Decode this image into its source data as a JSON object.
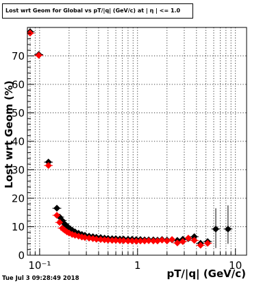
{
  "title": "Lost wrt Geom for Global vs pT/|q| (GeV/c) at | η | <= 1.0",
  "datestamp": "Tue Jul  3 09:28:49 2018",
  "chart_data": {
    "type": "scatter",
    "xlabel": "pT/|q| (GeV/c)",
    "ylabel": "Lost wrt Geom (%)",
    "xscale": "log",
    "xlim": [
      0.075,
      13
    ],
    "ylim": [
      0,
      80
    ],
    "grid": true,
    "x_tick_labels": [
      "10⁻¹",
      "1",
      "10"
    ],
    "y_tick_labels": [
      "0",
      "10",
      "20",
      "30",
      "40",
      "50",
      "60",
      "70"
    ],
    "series": [
      {
        "color": "#000000",
        "marker": "diamond",
        "points": [
          {
            "x": 0.08,
            "y": 78.5
          },
          {
            "x": 0.098,
            "y": 70.5
          },
          {
            "x": 0.123,
            "y": 32.7
          },
          {
            "x": 0.15,
            "y": 16.5
          },
          {
            "x": 0.16,
            "y": 13.4
          },
          {
            "x": 0.17,
            "y": 12.2
          },
          {
            "x": 0.18,
            "y": 11.0
          },
          {
            "x": 0.19,
            "y": 10.2
          },
          {
            "x": 0.2,
            "y": 9.5
          },
          {
            "x": 0.215,
            "y": 8.8
          },
          {
            "x": 0.23,
            "y": 8.2
          },
          {
            "x": 0.25,
            "y": 7.7
          },
          {
            "x": 0.27,
            "y": 7.3
          },
          {
            "x": 0.29,
            "y": 7.0
          },
          {
            "x": 0.32,
            "y": 6.7
          },
          {
            "x": 0.35,
            "y": 6.5
          },
          {
            "x": 0.38,
            "y": 6.3
          },
          {
            "x": 0.42,
            "y": 6.2
          },
          {
            "x": 0.46,
            "y": 6.0
          },
          {
            "x": 0.5,
            "y": 5.9
          },
          {
            "x": 0.55,
            "y": 5.8
          },
          {
            "x": 0.6,
            "y": 5.8
          },
          {
            "x": 0.66,
            "y": 5.7
          },
          {
            "x": 0.72,
            "y": 5.7
          },
          {
            "x": 0.8,
            "y": 5.6
          },
          {
            "x": 0.88,
            "y": 5.6
          },
          {
            "x": 0.97,
            "y": 5.5
          },
          {
            "x": 1.07,
            "y": 5.5
          },
          {
            "x": 1.18,
            "y": 5.4
          },
          {
            "x": 1.3,
            "y": 5.4
          },
          {
            "x": 1.45,
            "y": 5.4
          },
          {
            "x": 1.6,
            "y": 5.3
          },
          {
            "x": 1.78,
            "y": 5.5
          },
          {
            "x": 2.0,
            "y": 5.3
          },
          {
            "x": 2.25,
            "y": 5.4
          },
          {
            "x": 2.55,
            "y": 5.2
          },
          {
            "x": 2.9,
            "y": 5.6
          },
          {
            "x": 3.3,
            "y": 5.8
          },
          {
            "x": 3.8,
            "y": 6.5
          },
          {
            "x": 4.4,
            "y": 4.2
          },
          {
            "x": 5.2,
            "y": 4.8
          },
          {
            "x": 6.3,
            "y": 9.2
          },
          {
            "x": 8.4,
            "y": 9.2
          }
        ]
      },
      {
        "color": "#ff0000",
        "marker": "diamond",
        "points": [
          {
            "x": 0.08,
            "y": 78.0
          },
          {
            "x": 0.098,
            "y": 70.2
          },
          {
            "x": 0.123,
            "y": 31.5
          },
          {
            "x": 0.15,
            "y": 14.0
          },
          {
            "x": 0.16,
            "y": 11.5
          },
          {
            "x": 0.17,
            "y": 9.5
          },
          {
            "x": 0.18,
            "y": 8.8
          },
          {
            "x": 0.19,
            "y": 8.2
          },
          {
            "x": 0.2,
            "y": 7.8
          },
          {
            "x": 0.215,
            "y": 7.3
          },
          {
            "x": 0.23,
            "y": 7.0
          },
          {
            "x": 0.25,
            "y": 6.7
          },
          {
            "x": 0.27,
            "y": 6.4
          },
          {
            "x": 0.29,
            "y": 6.2
          },
          {
            "x": 0.32,
            "y": 6.0
          },
          {
            "x": 0.35,
            "y": 5.8
          },
          {
            "x": 0.38,
            "y": 5.6
          },
          {
            "x": 0.42,
            "y": 5.5
          },
          {
            "x": 0.46,
            "y": 5.4
          },
          {
            "x": 0.5,
            "y": 5.3
          },
          {
            "x": 0.55,
            "y": 5.2
          },
          {
            "x": 0.6,
            "y": 5.2
          },
          {
            "x": 0.66,
            "y": 5.1
          },
          {
            "x": 0.72,
            "y": 5.1
          },
          {
            "x": 0.8,
            "y": 5.0
          },
          {
            "x": 0.88,
            "y": 5.0
          },
          {
            "x": 0.97,
            "y": 4.9
          },
          {
            "x": 1.07,
            "y": 5.0
          },
          {
            "x": 1.18,
            "y": 5.0
          },
          {
            "x": 1.3,
            "y": 5.1
          },
          {
            "x": 1.45,
            "y": 5.0
          },
          {
            "x": 1.6,
            "y": 5.0
          },
          {
            "x": 1.78,
            "y": 5.3
          },
          {
            "x": 2.0,
            "y": 5.0
          },
          {
            "x": 2.25,
            "y": 5.5
          },
          {
            "x": 2.55,
            "y": 4.3
          },
          {
            "x": 2.9,
            "y": 4.8
          },
          {
            "x": 3.3,
            "y": 6.0
          },
          {
            "x": 3.8,
            "y": 5.2
          },
          {
            "x": 4.4,
            "y": 3.5
          },
          {
            "x": 5.2,
            "y": 4.2
          }
        ]
      }
    ]
  }
}
